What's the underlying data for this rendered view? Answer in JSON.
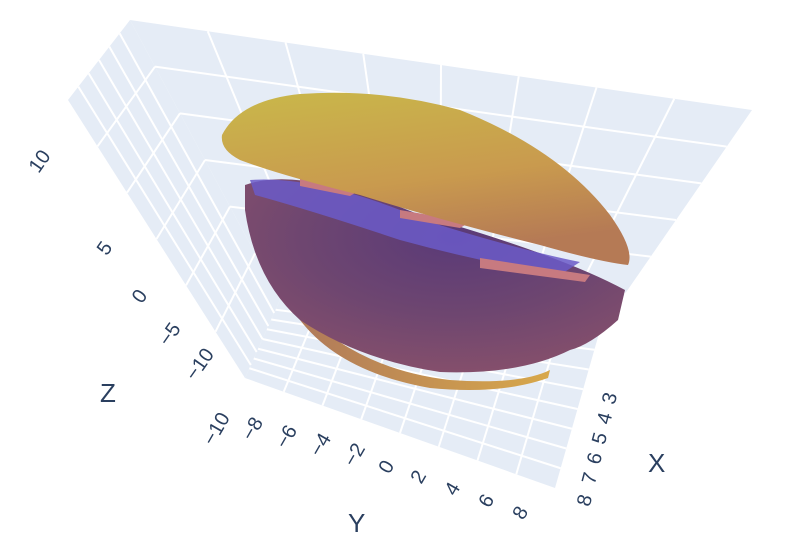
{
  "chart_data": {
    "type": "3d-isosurface",
    "title": "",
    "axes": {
      "x": {
        "title": "X",
        "ticks": [
          "3",
          "4",
          "5",
          "6",
          "7",
          "8"
        ]
      },
      "y": {
        "title": "Y",
        "ticks": [
          "−10",
          "−8",
          "−6",
          "−4",
          "−2",
          "0",
          "2",
          "4",
          "6",
          "8"
        ]
      },
      "z": {
        "title": "Z",
        "ticks": [
          "−10",
          "−5",
          "0",
          "5",
          "10"
        ]
      }
    },
    "colorscale": [
      "#3b2e7e",
      "#6a4a8c",
      "#8c506e",
      "#b07a5a",
      "#d8a84a",
      "#c9b84a"
    ],
    "pane_color": "#e5ecf6",
    "grid_color": "#ffffff",
    "grid": true
  }
}
